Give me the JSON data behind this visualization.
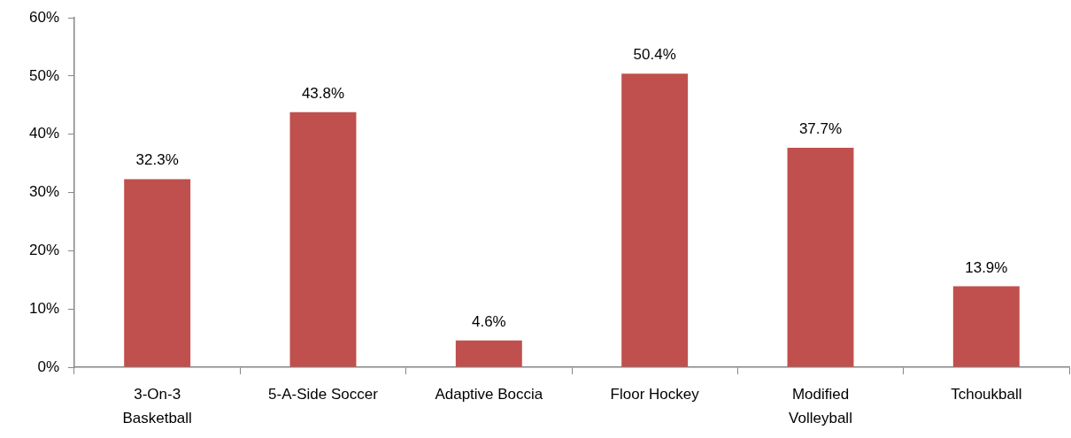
{
  "chart_data": {
    "type": "bar",
    "categories": [
      "3-On-3 Basketball",
      "5-A-Side Soccer",
      "Adaptive Boccia",
      "Floor Hockey",
      "Modified Volleyball",
      "Tchoukball"
    ],
    "values": [
      32.3,
      43.8,
      4.6,
      50.4,
      37.7,
      13.9
    ],
    "value_labels": [
      "32.3%",
      "43.8%",
      "4.6%",
      "50.4%",
      "37.7%",
      "13.9%"
    ],
    "color": "#c0504d",
    "ylim": [
      0,
      60
    ],
    "yticks": [
      {
        "value": 0,
        "label": "0%"
      },
      {
        "value": 10,
        "label": "10%"
      },
      {
        "value": 20,
        "label": "20%"
      },
      {
        "value": 30,
        "label": "30%"
      },
      {
        "value": 40,
        "label": "40%"
      },
      {
        "value": 50,
        "label": "50%"
      },
      {
        "value": 60,
        "label": "60%"
      }
    ],
    "grid": false,
    "legend": false
  }
}
